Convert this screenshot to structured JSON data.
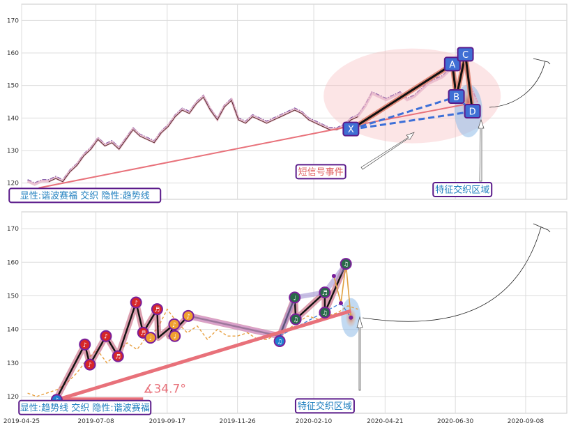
{
  "chart_data": [
    {
      "type": "line",
      "panel": "top",
      "ylim": [
        115,
        175
      ],
      "yticks": [
        120,
        130,
        140,
        150,
        160,
        170
      ],
      "xlim": [
        "2019-04-25",
        "2020-10-19"
      ],
      "grid": true,
      "series": [
        {
          "name": "",
          "style": "dashdot-indigo",
          "x": [
            "2019-05-01",
            "2019-05-08",
            "2019-05-15",
            "2019-05-22",
            "2019-05-29",
            "2019-06-05",
            "2019-06-12",
            "2019-06-19",
            "2019-06-26",
            "2019-07-03",
            "2019-07-10",
            "2019-07-17",
            "2019-07-24",
            "2019-07-31",
            "2019-08-07",
            "2019-08-14",
            "2019-08-21",
            "2019-08-28",
            "2019-09-04",
            "2019-09-11",
            "2019-09-18",
            "2019-09-25",
            "2019-10-02",
            "2019-10-09",
            "2019-10-16",
            "2019-10-23",
            "2019-10-30",
            "2019-11-06",
            "2019-11-13",
            "2019-11-20",
            "2019-11-27",
            "2019-12-04",
            "2019-12-11",
            "2019-12-18",
            "2019-12-25",
            "2020-01-01",
            "2020-01-08",
            "2020-01-15",
            "2020-01-22",
            "2020-01-29",
            "2020-02-05",
            "2020-02-12",
            "2020-02-19",
            "2020-02-26",
            "2020-03-04",
            "2020-03-11",
            "2020-03-18",
            "2020-03-25",
            "2020-04-01",
            "2020-04-08",
            "2020-04-15",
            "2020-04-22",
            "2020-04-29",
            "2020-05-06",
            "2020-05-13",
            "2020-05-20",
            "2020-05-27",
            "2020-06-03",
            "2020-06-10",
            "2020-06-17",
            "2020-06-24",
            "2020-07-01",
            "2020-07-08",
            "2020-07-15",
            "2020-07-22"
          ],
          "y": [
            121,
            120,
            121,
            121,
            122,
            121,
            124,
            126,
            129,
            131,
            134,
            132,
            133,
            131,
            134,
            137,
            135,
            134,
            133,
            136,
            138,
            141,
            143,
            142,
            145,
            147,
            143,
            140,
            144,
            146,
            140,
            139,
            141,
            140,
            139,
            140,
            141,
            142,
            143,
            142,
            140,
            139,
            138,
            137,
            137,
            138,
            140,
            141,
            144,
            148,
            147,
            146,
            147,
            148,
            146,
            147,
            149,
            151,
            152,
            153,
            155,
            156,
            157,
            150,
            145
          ]
        }
      ],
      "trendlines": [
        {
          "from": [
            "2019-05-12",
            118.5
          ],
          "to": [
            "2020-03-18",
            137.5
          ],
          "color": "#e8717a"
        },
        {
          "from": [
            "2020-03-18",
            137.5
          ],
          "to": [
            "2020-07-15",
            144.5
          ],
          "color": "#e8717a"
        }
      ],
      "points": [
        {
          "label": "X",
          "x": "2020-03-18",
          "y": 136.5
        },
        {
          "label": "A",
          "x": "2020-06-27",
          "y": 156.5
        },
        {
          "label": "B",
          "x": "2020-07-01",
          "y": 146.5
        },
        {
          "label": "C",
          "x": "2020-07-10",
          "y": 159.5
        },
        {
          "label": "D",
          "x": "2020-07-17",
          "y": 142.0
        }
      ],
      "annotations": [
        {
          "text": "短信号事件",
          "x": "2020-02-17",
          "y": 123.5,
          "color": "#e06060"
        },
        {
          "text": "特征交织区域",
          "x": "2020-07-07",
          "y": 118.0,
          "color": "#1f7fbf"
        },
        {
          "text": "显性:谐波赛福 交织 隐性:趋势线",
          "x": "2019-06-27",
          "y": 116.2,
          "color": "#1f7fbf"
        }
      ]
    },
    {
      "type": "line",
      "panel": "bottom",
      "ylim": [
        115,
        175
      ],
      "yticks": [
        120,
        130,
        140,
        150,
        160,
        170
      ],
      "xlim": [
        "2019-04-25",
        "2020-10-19"
      ],
      "xticks": [
        "2019-04-25",
        "2019-07-08",
        "2019-09-17",
        "2019-11-26",
        "2020-02-10",
        "2020-04-21",
        "2020-06-30",
        "2020-09-08"
      ],
      "grid": true,
      "series": [
        {
          "name": "",
          "style": "dashed-orange",
          "x": [
            "2019-05-01",
            "2019-05-10",
            "2019-05-20",
            "2019-05-30",
            "2019-06-09",
            "2019-06-19",
            "2019-06-29",
            "2019-07-09",
            "2019-07-19",
            "2019-07-29",
            "2019-08-08",
            "2019-08-18",
            "2019-08-28",
            "2019-09-07",
            "2019-09-17",
            "2019-09-27",
            "2019-10-07",
            "2019-10-17",
            "2019-10-27",
            "2019-11-06",
            "2019-11-16",
            "2019-11-26",
            "2019-12-06",
            "2019-12-16",
            "2019-12-26",
            "2020-01-05",
            "2020-01-15",
            "2020-01-25",
            "2020-02-04",
            "2020-02-14",
            "2020-02-24",
            "2020-03-05",
            "2020-03-15",
            "2020-03-25"
          ],
          "y": [
            121,
            120,
            121,
            122,
            124,
            127,
            131,
            134,
            130,
            133,
            136,
            134,
            138,
            140,
            146,
            142,
            139,
            141,
            137,
            140,
            138,
            138,
            139,
            137,
            137,
            139,
            140,
            142,
            144,
            143,
            144,
            145,
            147,
            146
          ]
        }
      ],
      "trendlines": [
        {
          "from": [
            "2019-05-30",
            119.0
          ],
          "to": [
            "2020-03-18",
            145.5
          ],
          "color": "#e8717a"
        }
      ],
      "angle_label": {
        "text": "∡34.7°",
        "x": "2019-08-24",
        "y": 121.5
      },
      "annotations": [
        {
          "text": "特征交织区域",
          "x": "2020-02-21",
          "y": 117.2,
          "color": "#1f7fbf"
        },
        {
          "text": "显性:趋势线 交织 隐性:谐波赛福",
          "x": "2019-06-27",
          "y": 116.7,
          "color": "#1f7fbf"
        }
      ]
    }
  ]
}
